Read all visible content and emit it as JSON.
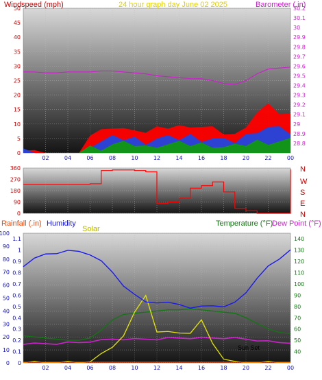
{
  "header": {
    "left_title": "Windspeed (mph)",
    "center_title": "24 hour graph day   June 02 2025",
    "right_title": "Barometer (.in)"
  },
  "colors": {
    "windspeed_title": "#cc0000",
    "center_title": "#e0d000",
    "barometer": "#cc22cc",
    "gust": "#ff0000",
    "average": "#2244dd",
    "min": "#119911",
    "humidity": "#1a1aee",
    "solar": "#e6e600",
    "temperature": "#117711",
    "dewpoint": "#cc22cc",
    "rainfall": "#ff4400",
    "tick_color": "#1010c0"
  },
  "lower_labels": {
    "rainfall": "Rainfall (.in)",
    "humidity": "Humidity",
    "solar": "Solar",
    "temperature": "Temperature (°F)",
    "dewpoint": "Dew Point (°F)",
    "sunset": "Sun Set"
  },
  "direction_labels": [
    "N",
    "W",
    "S",
    "E",
    "N"
  ],
  "chart_data": [
    {
      "type": "area",
      "ylabel": "Windspeed (mph)",
      "y2label": "Barometer (.in)",
      "ylim": [
        0,
        50
      ],
      "y_ticks": [
        0,
        5,
        10,
        15,
        20,
        25,
        30,
        35,
        40,
        45,
        50
      ],
      "y2lim": [
        28.7,
        30.2
      ],
      "y2_ticks": [
        "28.8",
        "28.9",
        "29",
        "29.1",
        "29.2",
        "29.3",
        "29.4",
        "29.5",
        "29.6",
        "29.7",
        "29.8",
        "29.9",
        "30",
        "30.1",
        "30.2"
      ],
      "x_ticks": [
        "02",
        "04",
        "06",
        "08",
        "10",
        "12",
        "14",
        "16",
        "18",
        "20",
        "22",
        "00"
      ],
      "x_hours": [
        0,
        1,
        2,
        3,
        4,
        5,
        6,
        7,
        8,
        9,
        10,
        11,
        12,
        13,
        14,
        15,
        16,
        17,
        18,
        19,
        20,
        21,
        22,
        23,
        24
      ],
      "series": [
        {
          "name": "Gust",
          "values": [
            2,
            1,
            0,
            0,
            0,
            0,
            6,
            7,
            9,
            8,
            9,
            7,
            8,
            9,
            9,
            10,
            9,
            8,
            7,
            6,
            10,
            14,
            16,
            14,
            13
          ]
        },
        {
          "name": "Average",
          "values": [
            1,
            0,
            0,
            0,
            0,
            0,
            3,
            4,
            5,
            5,
            5,
            4,
            5,
            5,
            5,
            6,
            5,
            5,
            4,
            4,
            6,
            8,
            9,
            8,
            7
          ]
        },
        {
          "name": "Min",
          "values": [
            0,
            0,
            0,
            0,
            0,
            0,
            2,
            2,
            3,
            3,
            3,
            2,
            3,
            3,
            3,
            3,
            3,
            3,
            2,
            2,
            3,
            4,
            4,
            4,
            4
          ]
        },
        {
          "name": "Barometer",
          "values": [
            29.54,
            29.54,
            29.53,
            29.53,
            29.54,
            29.54,
            29.54,
            29.55,
            29.55,
            29.54,
            29.53,
            29.52,
            29.5,
            29.49,
            29.48,
            29.47,
            29.47,
            29.45,
            29.42,
            29.41,
            29.45,
            29.52,
            29.57,
            29.58,
            29.59
          ]
        }
      ]
    },
    {
      "type": "line",
      "ylim": [
        0,
        360
      ],
      "y_ticks": [
        0,
        90,
        180,
        270,
        360
      ],
      "x_hours": [
        0,
        1,
        2,
        3,
        4,
        5,
        6,
        7,
        8,
        9,
        10,
        11,
        12,
        13,
        14,
        15,
        16,
        17,
        18,
        19,
        20,
        21,
        22,
        23,
        24
      ],
      "series": [
        {
          "name": "Wind direction",
          "values": [
            230,
            230,
            230,
            230,
            230,
            230,
            235,
            340,
            345,
            345,
            340,
            330,
            80,
            90,
            120,
            200,
            220,
            250,
            170,
            40,
            20,
            0,
            0,
            0,
            350
          ]
        }
      ]
    },
    {
      "type": "line",
      "ylim": [
        0,
        100
      ],
      "y_ticks": [
        0,
        10,
        20,
        30,
        40,
        50,
        60,
        70,
        80,
        90,
        100
      ],
      "y_rain_ticks": [
        "0",
        "0.1",
        "0.2",
        "0.3",
        "0.4",
        "0.5",
        "0.6",
        "0.7",
        "0.8",
        "0.9",
        "1",
        "1.1"
      ],
      "y_temp_ticks": [
        40,
        50,
        60,
        70,
        80,
        90,
        100,
        110,
        120,
        130,
        140
      ],
      "x_ticks": [
        "02",
        "04",
        "06",
        "08",
        "10",
        "12",
        "14",
        "16",
        "18",
        "20",
        "22",
        "00"
      ],
      "x_hours": [
        0,
        1,
        2,
        3,
        4,
        5,
        6,
        7,
        8,
        9,
        10,
        11,
        12,
        13,
        14,
        15,
        16,
        17,
        18,
        19,
        20,
        21,
        22,
        23,
        24
      ],
      "series": [
        {
          "name": "Humidity",
          "values": [
            75,
            80,
            84,
            85,
            86,
            86,
            84,
            78,
            70,
            60,
            52,
            47,
            47,
            46,
            45,
            43,
            43,
            44,
            44,
            46,
            54,
            66,
            74,
            80,
            88
          ]
        },
        {
          "name": "Solar",
          "values": [
            0,
            0,
            0,
            0,
            0,
            0,
            2,
            6,
            12,
            22,
            38,
            52,
            25,
            23,
            23,
            24,
            32,
            15,
            4,
            0,
            0,
            0,
            0,
            0,
            0
          ]
        },
        {
          "name": "Temperature",
          "values": [
            54,
            53,
            52,
            51,
            50,
            50,
            52,
            59,
            68,
            73,
            74,
            75,
            76,
            77,
            77,
            78,
            77,
            76,
            75,
            74,
            70,
            65,
            60,
            57,
            56
          ]
        },
        {
          "name": "Dew Point",
          "values": [
            47,
            47,
            47,
            47,
            48,
            48,
            49,
            50,
            51,
            51,
            51,
            51,
            51,
            52,
            52,
            52,
            52,
            52,
            52,
            52,
            51,
            50,
            49,
            48,
            48
          ]
        },
        {
          "name": "Rainfall",
          "values": [
            0,
            0,
            0,
            0,
            0,
            0,
            0,
            0,
            0,
            0,
            0,
            0,
            0,
            0,
            0,
            0,
            0,
            0,
            0,
            0,
            0,
            0,
            0,
            0,
            0
          ]
        }
      ]
    }
  ]
}
